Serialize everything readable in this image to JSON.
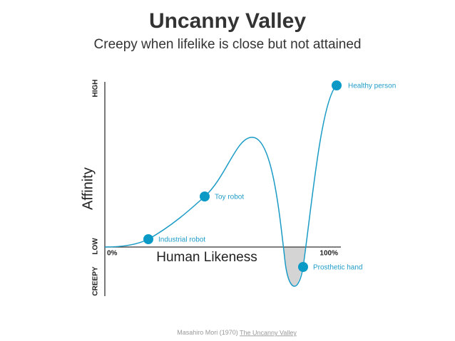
{
  "header": {
    "title": "Uncanny Valley",
    "subtitle": "Creepy when lifelike is close but not attained"
  },
  "axes": {
    "y_label": "Affinity",
    "y_high": "HIGH",
    "y_low": "LOW",
    "y_creepy": "CREEPY",
    "x_label": "Human Likeness",
    "x_start": "0%",
    "x_end": "100%"
  },
  "points": [
    {
      "label": "Industrial robot"
    },
    {
      "label": "Toy robot"
    },
    {
      "label": "Prosthetic hand"
    },
    {
      "label": "Healthy person"
    }
  ],
  "footer": {
    "author": "Masahiro Mori (1970)",
    "link": "The Uncanny Valley"
  }
}
